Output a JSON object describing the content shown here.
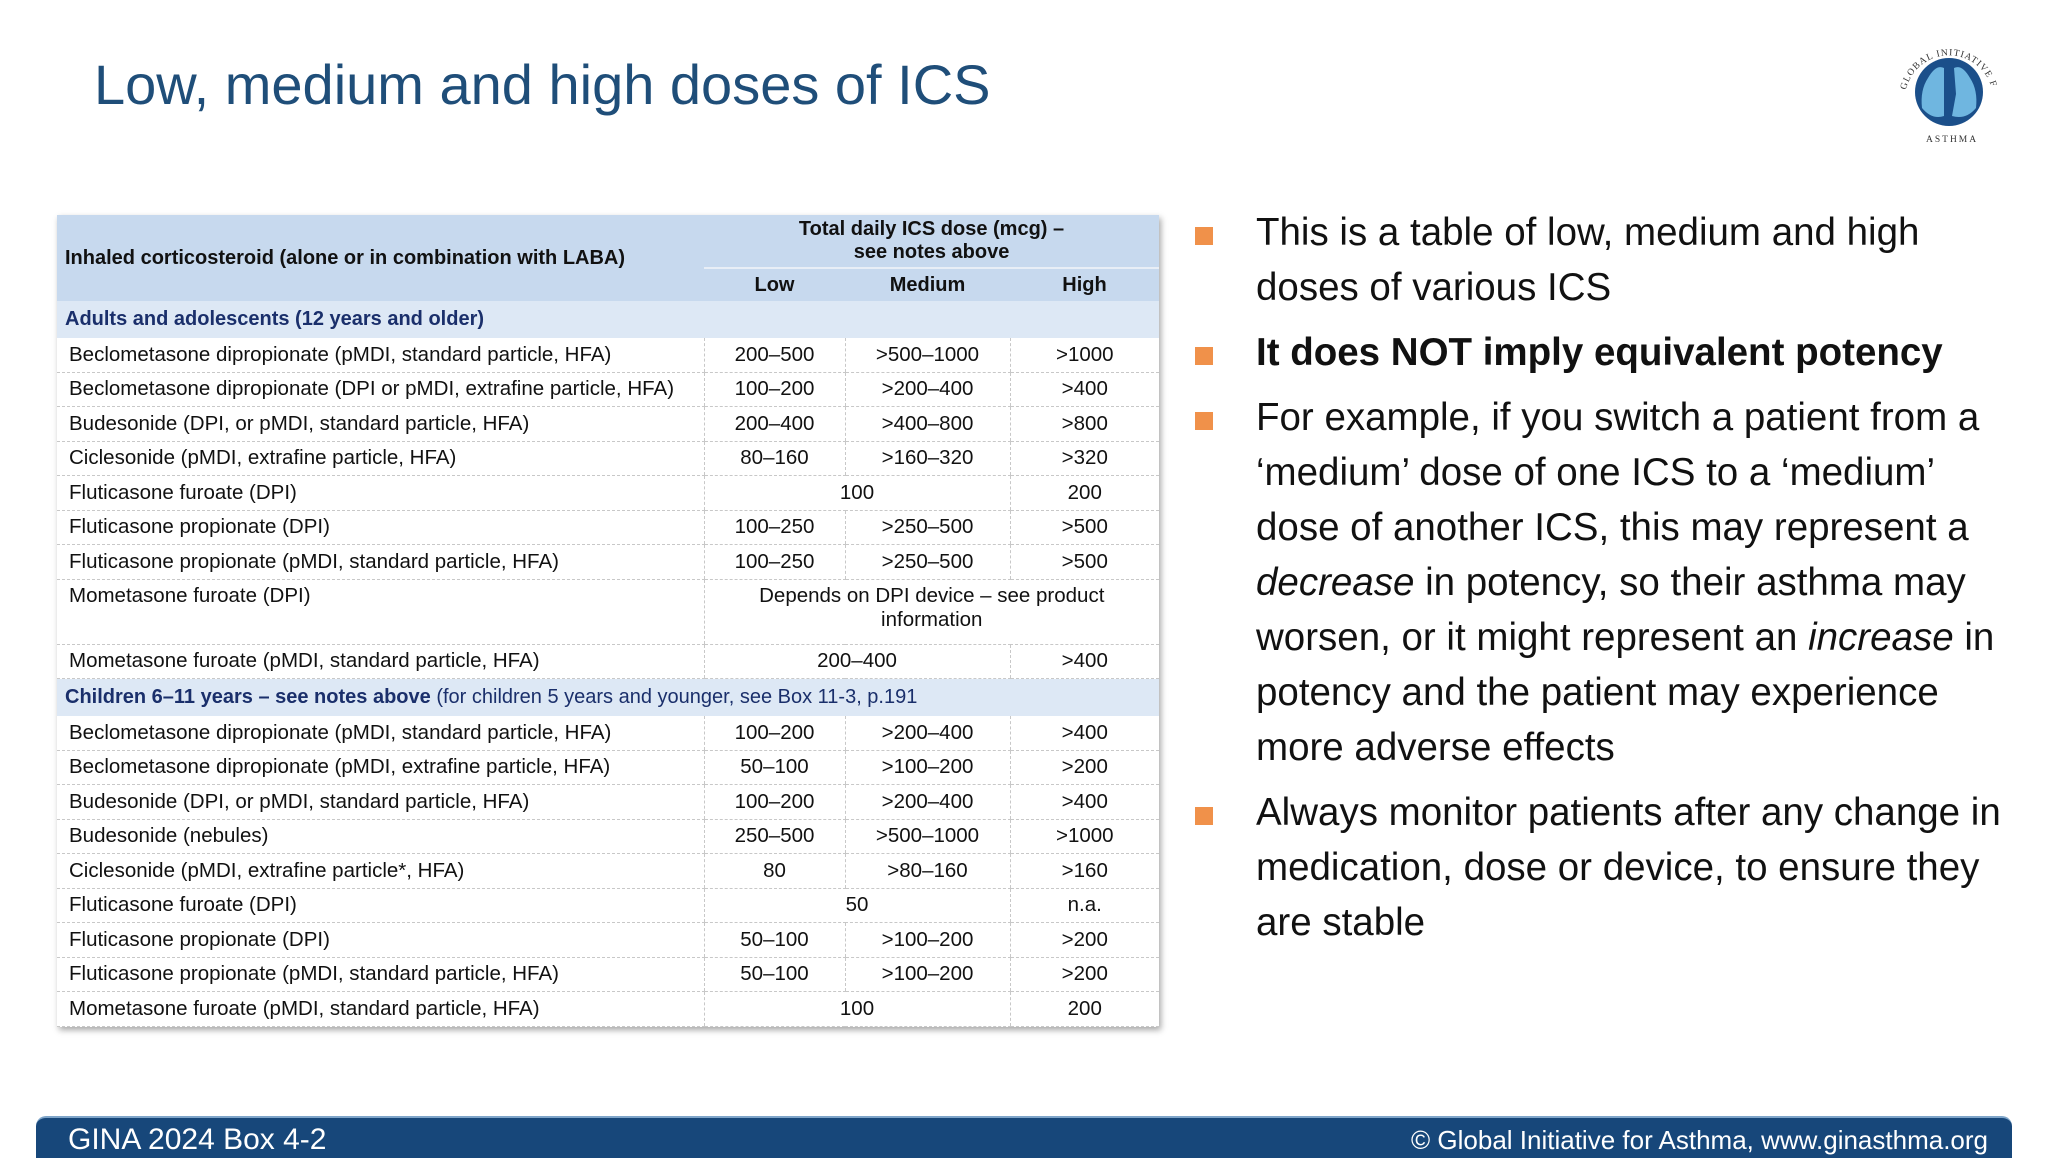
{
  "slide": {
    "title": "Low, medium and high doses of ICS",
    "logo": {
      "icon": "gina-logo-icon",
      "text_top": "GLOBAL INITIATIVE FOR",
      "text_bottom": "ASTHMA"
    }
  },
  "table": {
    "header": {
      "first_col": "Inhaled corticosteroid (alone or in combination with LABA)",
      "dose_group_line1": "Total daily ICS dose (mcg) –",
      "dose_group_line2": "see notes above",
      "low": "Low",
      "medium": "Medium",
      "high": "High"
    },
    "sections": [
      {
        "title_bold": "Adults and adolescents (12 years and older)",
        "title_rest": "",
        "rows": [
          {
            "name": "Beclometasone dipropionate (pMDI, standard particle, HFA)",
            "low": "200–500",
            "medium": ">500–1000",
            "high": ">1000"
          },
          {
            "name": "Beclometasone dipropionate (DPI or pMDI, extrafine particle, HFA)",
            "low": "100–200",
            "medium": ">200–400",
            "high": ">400"
          },
          {
            "name": "Budesonide (DPI, or pMDI, standard particle, HFA)",
            "low": "200–400",
            "medium": ">400–800",
            "high": ">800"
          },
          {
            "name": "Ciclesonide (pMDI, extrafine particle, HFA)",
            "low": "80–160",
            "medium": ">160–320",
            "high": ">320"
          },
          {
            "name": "Fluticasone furoate (DPI)",
            "low_medium": "100",
            "high": "200"
          },
          {
            "name": "Fluticasone propionate (DPI)",
            "low": "100–250",
            "medium": ">250–500",
            "high": ">500"
          },
          {
            "name": "Fluticasone propionate (pMDI, standard particle, HFA)",
            "low": "100–250",
            "medium": ">250–500",
            "high": ">500"
          },
          {
            "name": "Mometasone furoate (DPI)",
            "all": "Depends on DPI device – see product information"
          },
          {
            "name": "Mometasone furoate (pMDI, standard particle, HFA)",
            "low_medium": "200–400",
            "high": ">400"
          }
        ]
      },
      {
        "title_bold": "Children 6–11 years – see notes above",
        "title_rest": " (for children 5 years and younger, see Box 11-3, p.191",
        "rows": [
          {
            "name": "Beclometasone dipropionate (pMDI, standard particle, HFA)",
            "low": "100–200",
            "medium": ">200–400",
            "high": ">400"
          },
          {
            "name": "Beclometasone dipropionate (pMDI, extrafine particle, HFA)",
            "low": "50–100",
            "medium": ">100–200",
            "high": ">200"
          },
          {
            "name": "Budesonide (DPI, or pMDI, standard particle, HFA)",
            "low": "100–200",
            "medium": ">200–400",
            "high": ">400"
          },
          {
            "name": "Budesonide (nebules)",
            "low": "250–500",
            "medium": ">500–1000",
            "high": ">1000"
          },
          {
            "name": "Ciclesonide (pMDI, extrafine particle*, HFA)",
            "low": "80",
            "medium": ">80–160",
            "high": ">160"
          },
          {
            "name": "Fluticasone furoate (DPI)",
            "low_medium": "50",
            "high": "n.a."
          },
          {
            "name": "Fluticasone propionate (DPI)",
            "low": "50–100",
            "medium": ">100–200",
            "high": ">200"
          },
          {
            "name": "Fluticasone propionate (pMDI, standard particle, HFA)",
            "low": "50–100",
            "medium": ">100–200",
            "high": ">200"
          },
          {
            "name": "Mometasone furoate (pMDI, standard particle, HFA)",
            "low_medium": "100",
            "high": "200"
          }
        ]
      }
    ]
  },
  "bullets": {
    "b1": "This is a table of low, medium and high doses of various ICS",
    "b2": "It does NOT imply equivalent potency",
    "b3_part1": "For example, if you switch a patient from a ‘medium’ dose of one ICS to a ‘medium’ dose of another ICS, this may represent a ",
    "b3_em1": "decrease",
    "b3_part2": " in potency, so their asthma may worsen, or it might represent an ",
    "b3_em2": "increase",
    "b3_part3": " in potency and the patient may experience more adverse effects",
    "b4": "Always monitor patients after any change in medication, dose or device, to ensure they are stable",
    "bullet_color": "#f0914a"
  },
  "footer": {
    "left": "GINA 2024 Box 4-2",
    "right": "© Global Initiative for Asthma, www.ginasthma.org",
    "bg_color": "#17477a"
  }
}
